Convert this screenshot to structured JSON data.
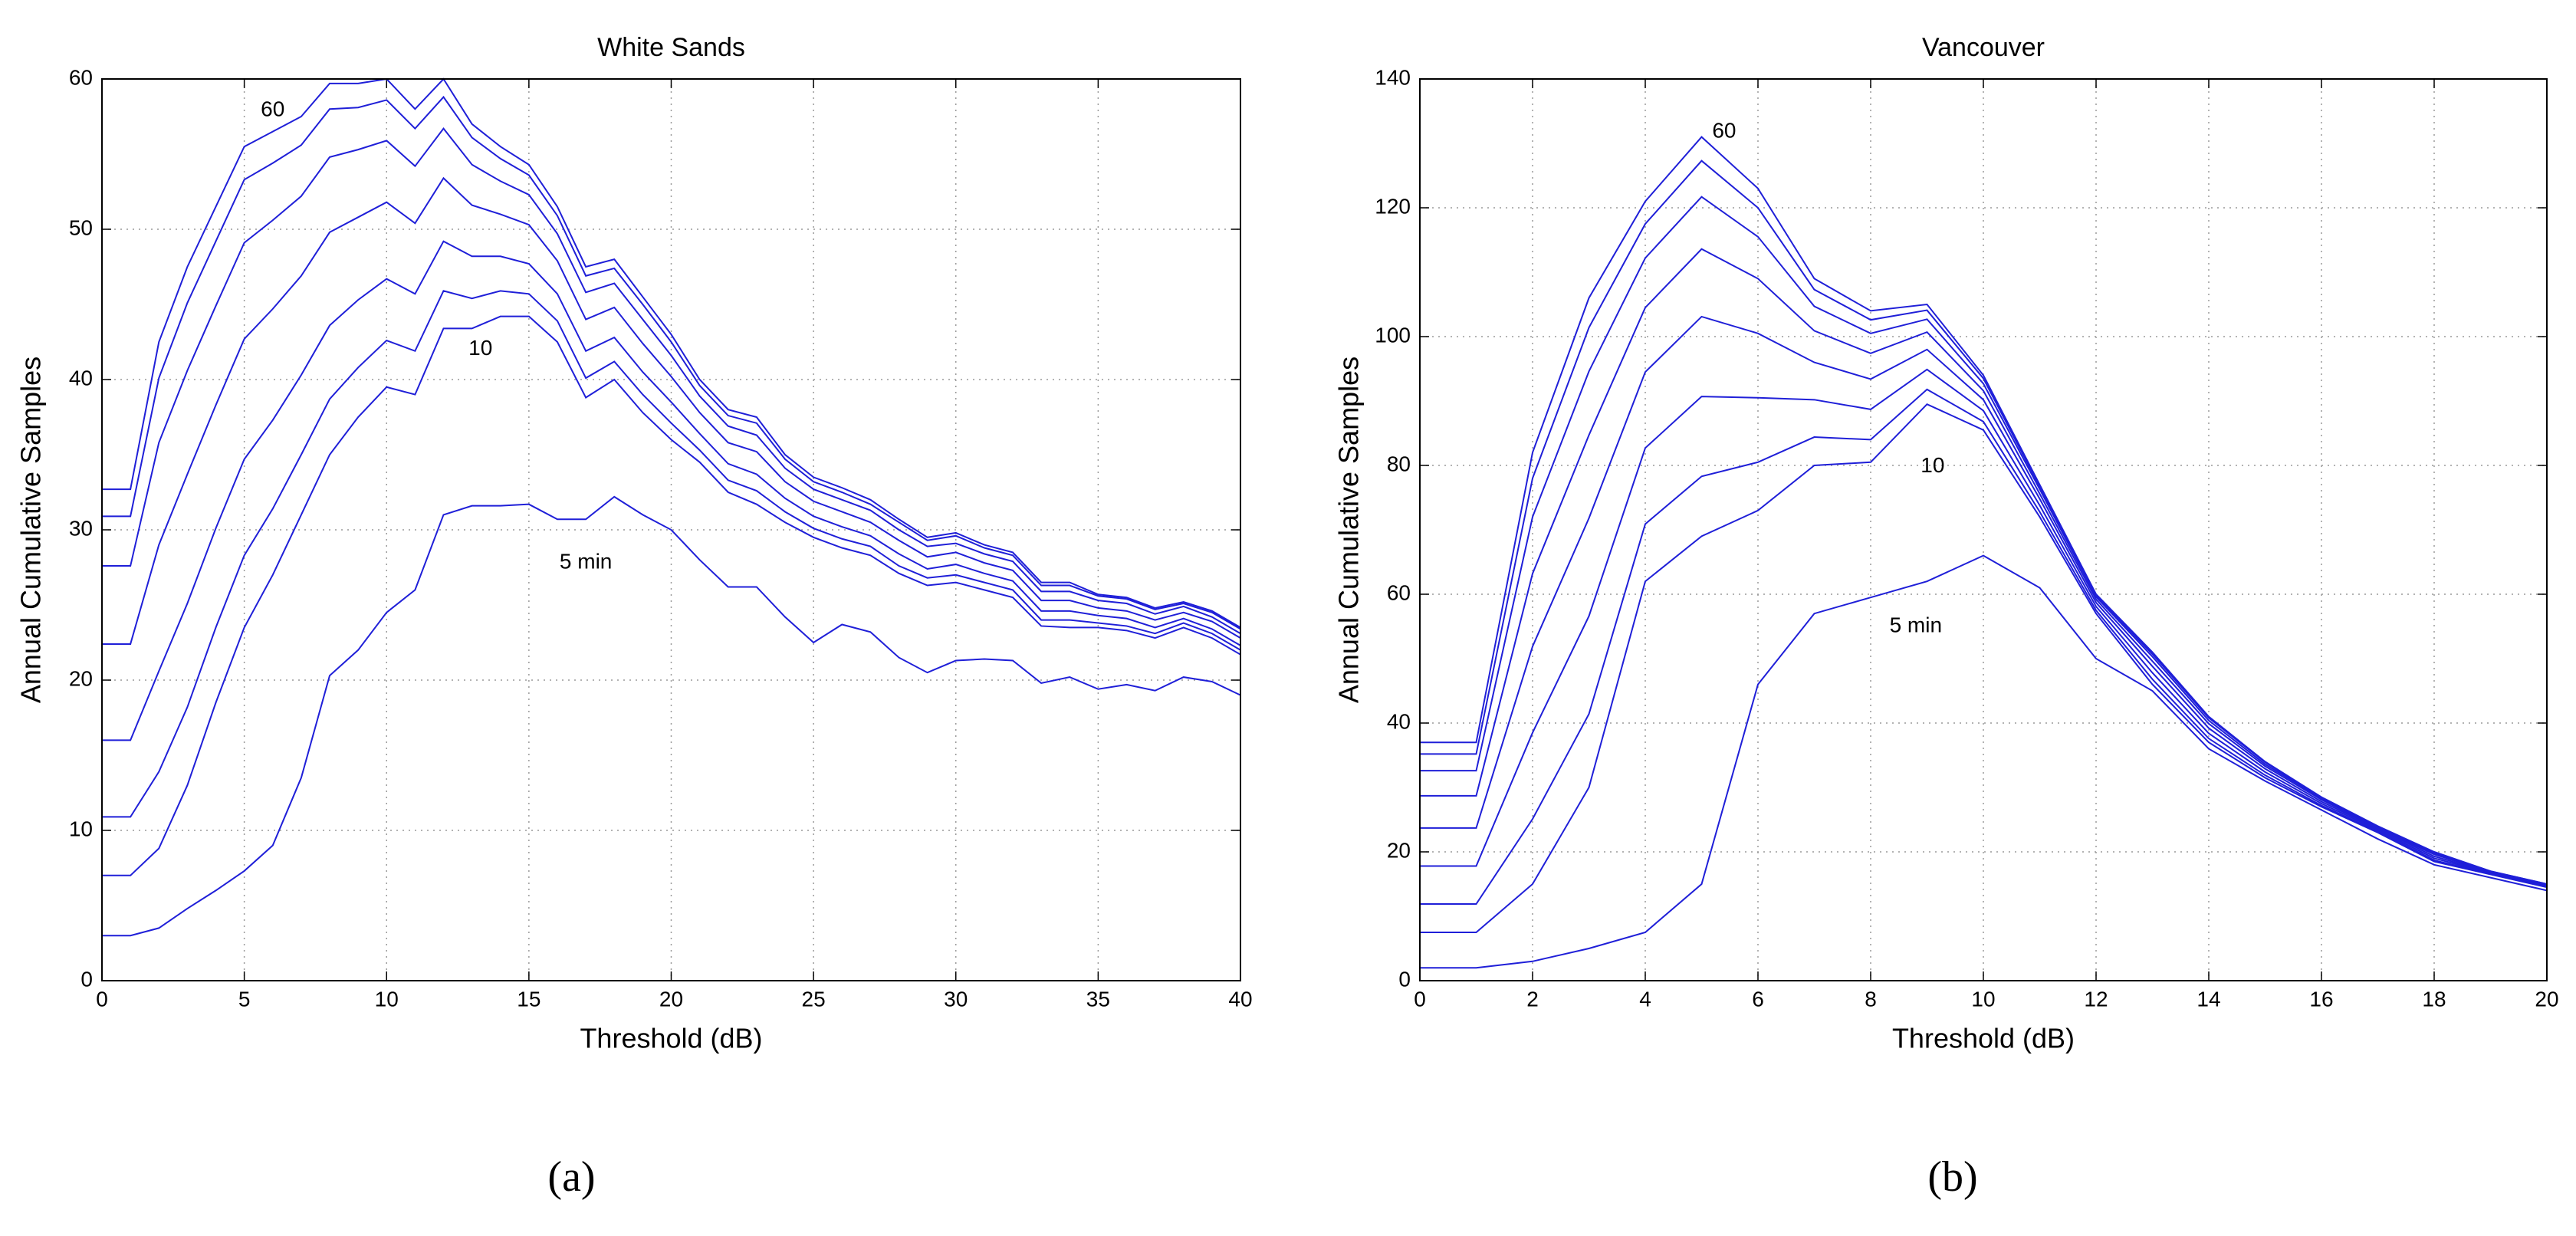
{
  "chart_data": [
    {
      "type": "line",
      "title": "White Sands",
      "xlabel": "Threshold (dB)",
      "ylabel": "Annual Cumulative Samples",
      "panel_label": "(a)",
      "color": "#1f1fd8",
      "grid": true,
      "xlim": [
        0,
        40
      ],
      "xticks": [
        0,
        5,
        10,
        15,
        20,
        25,
        30,
        35,
        40
      ],
      "ylim": [
        0,
        60
      ],
      "yticks": [
        0,
        10,
        20,
        30,
        40,
        50,
        60
      ],
      "x": [
        0,
        1,
        2,
        3,
        4,
        5,
        6,
        7,
        8,
        9,
        10,
        11,
        12,
        13,
        14,
        15,
        16,
        17,
        18,
        19,
        20,
        21,
        22,
        23,
        24,
        25,
        26,
        27,
        28,
        29,
        30,
        31,
        32,
        33,
        34,
        35,
        36,
        37,
        38,
        39,
        40
      ],
      "series": [
        {
          "values": [
            3,
            3,
            3.5,
            4.8,
            6,
            7.3,
            9,
            13.5,
            20.3,
            22,
            24.5,
            26,
            31,
            31.6,
            31.6,
            31.7,
            30.7,
            30.7,
            32.2,
            31,
            30,
            28,
            26.2,
            26.2,
            24.2,
            22.5,
            23.7,
            23.2,
            21.5,
            20.5,
            21.3,
            21.4,
            21.3,
            19.8,
            20.2,
            19.4,
            19.7,
            19.3,
            20.2,
            19.9,
            19
          ]
        },
        {
          "values": [
            7,
            7,
            8.8,
            13,
            18.5,
            23.5,
            27,
            31,
            35,
            37.5,
            39.5,
            39,
            43.4,
            43.4,
            44.2,
            44.2,
            42.5,
            38.8,
            40,
            37.8,
            36,
            34.5,
            32.5,
            31.7,
            30.5,
            29.5,
            28.8,
            28.3,
            27.1,
            26.3,
            26.5,
            26,
            25.5,
            23.6,
            23.5,
            23.5,
            23.3,
            22.8,
            23.5,
            22.8,
            21.7
          ]
        },
        {
          "values": [
            10.9,
            10.9,
            13.9,
            18.2,
            23.5,
            28.3,
            31.4,
            35,
            38.7,
            40.8,
            42.6,
            41.9,
            45.9,
            45.4,
            45.9,
            45.7,
            43.9,
            40.1,
            41.2,
            39,
            37.1,
            35.3,
            33.3,
            32.6,
            31.2,
            30.1,
            29.4,
            28.9,
            27.6,
            26.8,
            27,
            26.5,
            26,
            24,
            24,
            23.8,
            23.6,
            23.1,
            23.8,
            23.1,
            22
          ]
        },
        {
          "values": [
            16,
            16,
            20.6,
            25.1,
            30.1,
            34.7,
            37.3,
            40.3,
            43.6,
            45.3,
            46.7,
            45.7,
            49.2,
            48.2,
            48.2,
            47.7,
            45.7,
            41.9,
            42.8,
            40.5,
            38.5,
            36.4,
            34.4,
            33.7,
            32.1,
            30.9,
            30.2,
            29.6,
            28.4,
            27.4,
            27.7,
            27.1,
            26.6,
            24.6,
            24.6,
            24.3,
            24.1,
            23.5,
            24.1,
            23.4,
            22.3
          ]
        },
        {
          "values": [
            22.4,
            22.4,
            29,
            33.7,
            38.3,
            42.7,
            44.7,
            46.9,
            49.8,
            50.8,
            51.8,
            50.4,
            53.4,
            51.6,
            51,
            50.3,
            47.9,
            44,
            44.8,
            42.4,
            40.2,
            37.8,
            35.8,
            35.2,
            33.2,
            31.9,
            31.2,
            30.5,
            29.3,
            28.2,
            28.5,
            27.8,
            27.3,
            25.3,
            25.3,
            24.8,
            24.6,
            24,
            24.5,
            23.9,
            22.8
          ]
        },
        {
          "values": [
            27.6,
            27.6,
            35.8,
            40.6,
            44.9,
            49.1,
            50.6,
            52.2,
            54.8,
            55.3,
            55.9,
            54.2,
            56.7,
            54.3,
            53.2,
            52.3,
            49.7,
            45.8,
            46.4,
            44,
            41.6,
            38.9,
            36.9,
            36.3,
            34.1,
            32.7,
            32,
            31.3,
            30,
            28.9,
            29.1,
            28.4,
            27.9,
            25.9,
            25.9,
            25.3,
            25.1,
            24.4,
            24.9,
            24.2,
            23.1
          ]
        },
        {
          "values": [
            30.9,
            30.9,
            40.1,
            45.1,
            49.2,
            53.3,
            54.4,
            55.6,
            58,
            58.1,
            58.6,
            56.7,
            58.8,
            56.1,
            54.7,
            53.6,
            50.9,
            46.9,
            47.4,
            45,
            42.5,
            39.6,
            37.6,
            37.1,
            34.7,
            33.2,
            32.5,
            31.7,
            30.5,
            29.3,
            29.6,
            28.8,
            28.3,
            26.3,
            26.3,
            25.6,
            25.4,
            24.7,
            25.1,
            24.5,
            23.4
          ]
        },
        {
          "values": [
            32.7,
            32.7,
            42.5,
            47.5,
            51.5,
            55.5,
            56.5,
            57.5,
            59.7,
            59.7,
            60,
            58,
            60,
            57,
            55.5,
            54.3,
            51.5,
            47.5,
            48,
            45.5,
            43,
            40,
            38,
            37.5,
            35,
            33.5,
            32.8,
            32,
            30.7,
            29.5,
            29.8,
            29,
            28.5,
            26.5,
            26.5,
            25.7,
            25.5,
            24.8,
            25.2,
            24.6,
            23.5
          ]
        }
      ],
      "annotations": [
        {
          "text": "60",
          "x": 6,
          "y": 57.9
        },
        {
          "text": "10",
          "x": 13.3,
          "y": 42
        },
        {
          "text": "5 min",
          "x": 17,
          "y": 27.8
        }
      ]
    },
    {
      "type": "line",
      "title": "Vancouver",
      "xlabel": "Threshold (dB)",
      "ylabel": "Annual Cumulative Samples",
      "panel_label": "(b)",
      "color": "#1f1fd8",
      "grid": true,
      "xlim": [
        0,
        20
      ],
      "xticks": [
        0,
        2,
        4,
        6,
        8,
        10,
        12,
        14,
        16,
        18,
        20
      ],
      "ylim": [
        0,
        140
      ],
      "yticks": [
        0,
        20,
        40,
        60,
        80,
        100,
        120,
        140
      ],
      "x": [
        0,
        1,
        2,
        3,
        4,
        5,
        6,
        7,
        8,
        9,
        10,
        11,
        12,
        13,
        14,
        15,
        16,
        17,
        18,
        19,
        20
      ],
      "series": [
        {
          "values": [
            2,
            2,
            3,
            5,
            7.5,
            15,
            46,
            57,
            59.5,
            62,
            66,
            61,
            50,
            45,
            36,
            31,
            26.5,
            22,
            18,
            16,
            14
          ]
        },
        {
          "values": [
            7.5,
            7.5,
            15,
            30,
            62,
            69,
            73,
            80,
            80.5,
            89.5,
            85.5,
            72,
            57,
            46,
            37,
            31.5,
            27,
            23,
            18.5,
            16.5,
            14.5
          ]
        },
        {
          "values": [
            11.9,
            11.9,
            25.1,
            41.4,
            70.9,
            78.3,
            80.5,
            84.4,
            84,
            91.8,
            86.8,
            72.8,
            57.5,
            46.8,
            37.6,
            31.9,
            27.2,
            23.2,
            18.7,
            16.6,
            14.6
          ]
        },
        {
          "values": [
            17.8,
            17.8,
            38.5,
            56.6,
            82.7,
            90.7,
            90.5,
            90.2,
            88.7,
            94.9,
            88.5,
            73.8,
            58.1,
            47.8,
            38.4,
            32.4,
            27.5,
            23.4,
            19,
            16.7,
            14.7
          ]
        },
        {
          "values": [
            23.7,
            23.7,
            51.9,
            71.8,
            94.5,
            103.1,
            100.5,
            96,
            93.4,
            98,
            90.2,
            74.8,
            58.7,
            48.8,
            39.2,
            32.9,
            27.8,
            23.6,
            19.3,
            16.8,
            14.8
          ]
        },
        {
          "values": [
            28.7,
            28.7,
            63.2,
            84.7,
            104.5,
            113.6,
            109,
            100.9,
            97.4,
            100.7,
            91.6,
            75.6,
            59.2,
            49.6,
            39.9,
            33.3,
            28.1,
            23.7,
            19.6,
            16.9,
            14.9
          ]
        },
        {
          "values": [
            32.6,
            32.6,
            72,
            94.6,
            112.2,
            121.7,
            115.5,
            104.7,
            100.5,
            102.7,
            92.7,
            76.3,
            59.6,
            50.3,
            40.4,
            33.6,
            28.3,
            23.9,
            19.8,
            16.9,
            14.9
          ]
        },
        {
          "values": [
            35.2,
            35.2,
            78,
            101.4,
            117.5,
            127.3,
            120,
            107.3,
            102.6,
            104.1,
            93.5,
            76.7,
            59.8,
            50.7,
            40.8,
            33.9,
            28.4,
            23.9,
            19.9,
            17,
            15
          ]
        },
        {
          "values": [
            37,
            37,
            82,
            106,
            121,
            131,
            123,
            109,
            104,
            105,
            94,
            77,
            60,
            51,
            41,
            34,
            28.5,
            24,
            20,
            17,
            15
          ]
        }
      ],
      "annotations": [
        {
          "text": "60",
          "x": 5.4,
          "y": 131.8
        },
        {
          "text": "10",
          "x": 9.1,
          "y": 79.8
        },
        {
          "text": "5 min",
          "x": 8.8,
          "y": 55
        }
      ]
    }
  ]
}
